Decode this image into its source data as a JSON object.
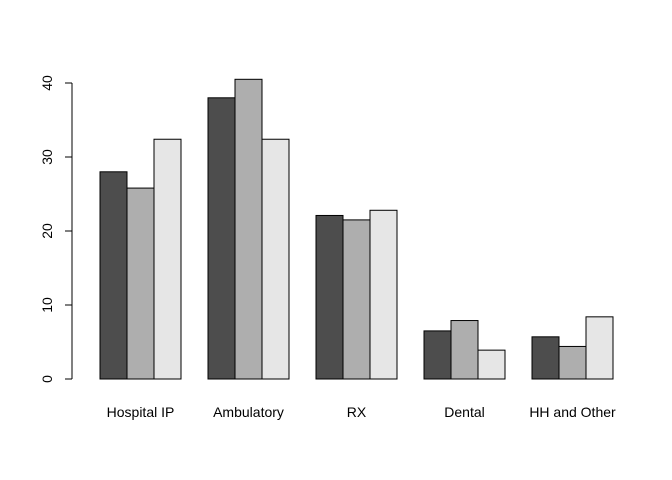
{
  "chart_data": {
    "type": "bar",
    "categories": [
      "Hospital IP",
      "Ambulatory",
      "RX",
      "Dental",
      "HH and Other"
    ],
    "series": [
      {
        "color": "#4d4d4d",
        "values": [
          28.0,
          38.0,
          22.1,
          6.5,
          5.7
        ]
      },
      {
        "color": "#aeaeae",
        "values": [
          25.8,
          40.5,
          21.5,
          7.9,
          4.4
        ]
      },
      {
        "color": "#e6e6e6",
        "values": [
          32.4,
          32.4,
          22.8,
          3.9,
          8.4
        ]
      }
    ],
    "y_ticks": [
      "0",
      "10",
      "20",
      "30",
      "40"
    ],
    "ylim": [
      0,
      40
    ],
    "title": "",
    "xlabel": "",
    "ylabel": "",
    "grid": false,
    "legend": false
  }
}
